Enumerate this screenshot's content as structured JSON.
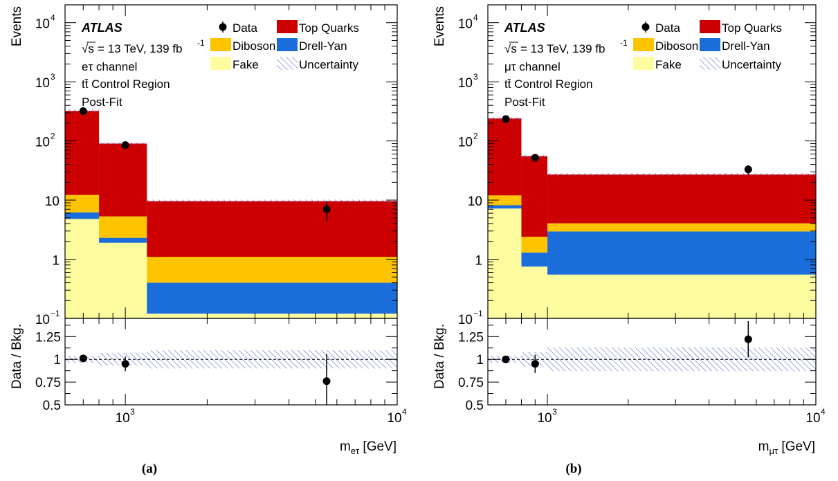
{
  "chart_data": [
    {
      "type": "bar",
      "panel_label": "(a)",
      "experiment": "ATLAS",
      "energy_text": "= 13 TeV, 139 fb",
      "sqrt_symbol": "√s",
      "lumi_exponent": "-1",
      "channel": "eτ channel",
      "region": "tt̄ Control Region",
      "fit": "Post-Fit",
      "ylabel": "Events",
      "ratio_ylabel": "Data / Bkg.",
      "xlabel_main": "m",
      "xlabel_sub": "eτ",
      "xlabel_unit": " [GeV]",
      "x_scale": "log",
      "y_scale": "log",
      "xlim": [
        600,
        10000
      ],
      "ylim": [
        0.1,
        20000
      ],
      "ratio_ylim": [
        0.5,
        1.45
      ],
      "x_ticks": [
        {
          "value": 1000,
          "base": "10",
          "exp": "3"
        },
        {
          "value": 10000,
          "base": "10",
          "exp": "4"
        }
      ],
      "y_ticks": [
        {
          "value": 0.1,
          "base": "10",
          "exp": "−1"
        },
        {
          "value": 1,
          "base": "1",
          "exp": ""
        },
        {
          "value": 10,
          "base": "10",
          "exp": ""
        },
        {
          "value": 100,
          "base": "10",
          "exp": "2"
        },
        {
          "value": 1000,
          "base": "10",
          "exp": "3"
        },
        {
          "value": 10000,
          "base": "10",
          "exp": "4"
        }
      ],
      "ratio_ticks": [
        "0.5",
        "0.75",
        "1",
        "1.25"
      ],
      "bin_edges": [
        600,
        800,
        1200,
        10000
      ],
      "stack": [
        {
          "name": "Fake",
          "color": "#fdfda0",
          "values": [
            4.8,
            1.9,
            0.12
          ]
        },
        {
          "name": "Drell-Yan",
          "color": "#1a6ddb",
          "values": [
            1.4,
            0.4,
            0.28
          ]
        },
        {
          "name": "Diboson",
          "color": "#fec400",
          "values": [
            6.0,
            3.0,
            0.7
          ]
        },
        {
          "name": "Top Quarks",
          "color": "#cc0000",
          "values": [
            310,
            85,
            8.5
          ]
        }
      ],
      "data_points": [
        {
          "x": 700,
          "y": 320,
          "err_low": 18,
          "err_high": 18
        },
        {
          "x": 1000,
          "y": 85,
          "err_low": 9,
          "err_high": 9
        },
        {
          "x": 5500,
          "y": 7,
          "err_low": 2.6,
          "err_high": 2.6
        }
      ],
      "ratio_points": [
        {
          "x": 700,
          "y": 1.01,
          "err": 0.03
        },
        {
          "x": 1000,
          "y": 0.95,
          "err": 0.08
        },
        {
          "x": 5500,
          "y": 0.76,
          "err": 0.3
        }
      ],
      "ratio_band": [
        0.04,
        0.07,
        0.1
      ],
      "legend": [
        {
          "label": "Data",
          "kind": "marker"
        },
        {
          "label": "Top Quarks",
          "color": "#cc0000",
          "kind": "box"
        },
        {
          "label": "Diboson",
          "color": "#fec400",
          "kind": "box"
        },
        {
          "label": "Drell-Yan",
          "color": "#1a6ddb",
          "kind": "box"
        },
        {
          "label": "Fake",
          "color": "#fdfda0",
          "kind": "box"
        },
        {
          "label": "Uncertainty",
          "kind": "hatch"
        }
      ]
    },
    {
      "type": "bar",
      "panel_label": "(b)",
      "experiment": "ATLAS",
      "energy_text": "= 13 TeV, 139 fb",
      "sqrt_symbol": "√s",
      "lumi_exponent": "-1",
      "channel": "μτ channel",
      "region": "tt̄ Control Region",
      "fit": "Post-Fit",
      "ylabel": "Events",
      "ratio_ylabel": "Data / Bkg.",
      "xlabel_main": "m",
      "xlabel_sub": "μτ",
      "xlabel_unit": " [GeV]",
      "x_scale": "log",
      "y_scale": "log",
      "xlim": [
        600,
        10000
      ],
      "ylim": [
        0.1,
        20000
      ],
      "ratio_ylim": [
        0.5,
        1.45
      ],
      "x_ticks": [
        {
          "value": 1000,
          "base": "10",
          "exp": "3"
        },
        {
          "value": 10000,
          "base": "10",
          "exp": "4"
        }
      ],
      "y_ticks": [
        {
          "value": 0.1,
          "base": "10",
          "exp": "−1"
        },
        {
          "value": 1,
          "base": "1",
          "exp": ""
        },
        {
          "value": 10,
          "base": "10",
          "exp": ""
        },
        {
          "value": 100,
          "base": "10",
          "exp": "2"
        },
        {
          "value": 1000,
          "base": "10",
          "exp": "3"
        },
        {
          "value": 10000,
          "base": "10",
          "exp": "4"
        }
      ],
      "ratio_ticks": [
        "0.5",
        "0.75",
        "1",
        "1.25"
      ],
      "bin_edges": [
        600,
        800,
        1000,
        10000
      ],
      "stack": [
        {
          "name": "Fake",
          "color": "#fdfda0",
          "values": [
            7.2,
            0.75,
            0.55
          ]
        },
        {
          "name": "Drell-Yan",
          "color": "#1a6ddb",
          "values": [
            1.0,
            0.55,
            2.4
          ]
        },
        {
          "name": "Diboson",
          "color": "#fec400",
          "values": [
            3.8,
            1.1,
            1.1
          ]
        },
        {
          "name": "Top Quarks",
          "color": "#cc0000",
          "values": [
            228,
            53,
            23
          ]
        }
      ],
      "data_points": [
        {
          "x": 700,
          "y": 235,
          "err_low": 15,
          "err_high": 15
        },
        {
          "x": 900,
          "y": 52,
          "err_low": 7,
          "err_high": 7
        },
        {
          "x": 5600,
          "y": 33,
          "err_low": 6,
          "err_high": 6
        }
      ],
      "ratio_points": [
        {
          "x": 700,
          "y": 1.0,
          "err": 0.04
        },
        {
          "x": 900,
          "y": 0.95,
          "err": 0.1
        },
        {
          "x": 5600,
          "y": 1.22,
          "err": 0.2
        }
      ],
      "ratio_band": [
        0.04,
        0.08,
        0.13
      ],
      "legend": [
        {
          "label": "Data",
          "kind": "marker"
        },
        {
          "label": "Top Quarks",
          "color": "#cc0000",
          "kind": "box"
        },
        {
          "label": "Diboson",
          "color": "#fec400",
          "kind": "box"
        },
        {
          "label": "Drell-Yan",
          "color": "#1a6ddb",
          "kind": "box"
        },
        {
          "label": "Fake",
          "color": "#fdfda0",
          "kind": "box"
        },
        {
          "label": "Uncertainty",
          "kind": "hatch"
        }
      ]
    }
  ]
}
